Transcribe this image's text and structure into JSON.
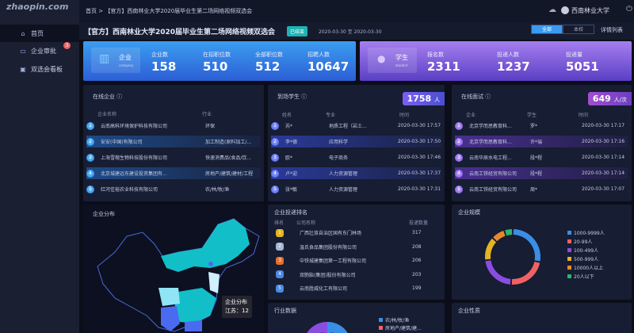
{
  "sidebar": {
    "logo": "智联招聘 zhaopin.com",
    "items": [
      {
        "label": "首页",
        "icon": "home-icon"
      },
      {
        "label": "企业审批",
        "icon": "approval-icon",
        "badge": "3"
      },
      {
        "label": "双选会看板",
        "icon": "dashboard-icon"
      }
    ]
  },
  "topbar": {
    "breadcrumb_home": "首页",
    "breadcrumb_sep": ">",
    "breadcrumb_current": "【官方】西南林业大学2020届毕业生第二场网络视频双选会",
    "user": "西南林业大学"
  },
  "event": {
    "title": "【官方】西南林业大学2020届毕业生第二场网络视频双选会",
    "status": "已结束",
    "dates": "2020-03-30 至 2020-03-30",
    "toggle": [
      "全部",
      "本校"
    ],
    "toggle_active": "全部",
    "details_link": "详情列表"
  },
  "company_card": {
    "label": "企业",
    "sub": "company",
    "stats": [
      {
        "label": "企业数",
        "value": "158"
      },
      {
        "label": "在招职位数",
        "value": "510"
      },
      {
        "label": "全部职位数",
        "value": "512"
      },
      {
        "label": "招聘人数",
        "value": "10647"
      }
    ]
  },
  "student_card": {
    "label": "学生",
    "sub": "student",
    "stats": [
      {
        "label": "报名数",
        "value": "2311"
      },
      {
        "label": "投递人数",
        "value": "1237"
      },
      {
        "label": "投递量",
        "value": "5051"
      }
    ]
  },
  "online_companies": {
    "title": "在线企业",
    "headers": [
      "企业名称",
      "行业"
    ],
    "rows": [
      [
        "云南高科环境保护科技有限公司",
        "环保"
      ],
      [
        "安安(中国)有限公司",
        "加工制造(原料加工/..."
      ],
      [
        "上海雪榕生物科技股份有限公司",
        "快速消费品(食品/饮..."
      ],
      [
        "北京城建远东建设投资集团有...",
        "房地产/建筑/建材/工程"
      ],
      [
        "红河佳裕农业科技有限公司",
        "农/林/牧/渔"
      ]
    ]
  },
  "arrived_students": {
    "title": "到场学生",
    "count": "1758",
    "unit": "人",
    "headers": [
      "姓名",
      "专业",
      "时间"
    ],
    "rows": [
      [
        "苏*",
        "地质工程（岩土...",
        "2020-03-30 17:57"
      ],
      [
        "李*德",
        "应用科学",
        "2020-03-30 17:50"
      ],
      [
        "欧*",
        "电子商务",
        "2020-03-30 17:46"
      ],
      [
        "卢*迎",
        "人力资源管理",
        "2020-03-30 17:37"
      ],
      [
        "张*敏",
        "人力资源管理",
        "2020-03-30 17:31"
      ]
    ]
  },
  "interviews": {
    "title": "在线面试",
    "count": "649",
    "unit": "人/次",
    "headers": [
      "企业",
      "学生",
      "时间"
    ],
    "rows": [
      [
        "北京学而思教育科...",
        "罗*",
        "2020-03-30 17:17"
      ],
      [
        "北京学而思教育科...",
        "许*瑞",
        "2020-03-30 17:16"
      ],
      [
        "云南华辰水电工程...",
        "段*程",
        "2020-03-30 17:14"
      ],
      [
        "云南工铁经贸有限公司",
        "段*程",
        "2020-03-30 17:14"
      ],
      [
        "云南工铁经贸有限公司",
        "周*",
        "2020-03-30 17:07"
      ]
    ]
  },
  "map": {
    "title": "企业分布",
    "tooltip_title": "企业分布",
    "tooltip_value": "江苏：12"
  },
  "ranking": {
    "title": "企业投递排名",
    "headers": [
      "排名",
      "公司名称",
      "投递数量"
    ],
    "rows": [
      [
        "1",
        "广西壮族自治区国有东门林场",
        "317"
      ],
      [
        "2",
        "温氏食品集团股份有限公司",
        "208"
      ],
      [
        "3",
        "中铁城建集团第一工程有限公司",
        "206"
      ],
      [
        "4",
        "双胞胎(集团)股份有限公司",
        "203"
      ],
      [
        "5",
        "云南胜威化工有限公司",
        "199"
      ]
    ]
  },
  "industry": {
    "title": "行业数据",
    "legend": [
      "农/林/牧/渔",
      "房地产/建筑/建..."
    ],
    "colors": [
      "#3a8ee6",
      "#f06262"
    ]
  },
  "nature": {
    "title": "企业性质"
  },
  "chart_data": {
    "type": "pie",
    "title": "企业规模",
    "categories": [
      "1000-9999人",
      "20-99人",
      "100-499人",
      "500-999人",
      "10000人以上",
      "20人以下"
    ],
    "values": [
      28,
      23,
      22,
      14,
      8,
      5
    ],
    "colors": [
      "#3a8ee6",
      "#f06262",
      "#8a4de0",
      "#e6b422",
      "#e6892e",
      "#2fb36b"
    ],
    "legend": "right"
  }
}
